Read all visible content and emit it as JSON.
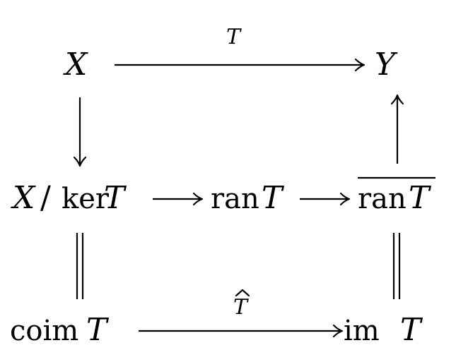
{
  "nodes": {
    "X": "X",
    "Y": "Y",
    "quotient": {
      "space": "X",
      "slash": "/",
      "ker": "ker",
      "op": "T"
    },
    "ran": {
      "fn": "ran",
      "op": "T"
    },
    "closure_ran": {
      "fn": "ran",
      "op": "T"
    },
    "coim": {
      "fn": "coim",
      "op": "T"
    },
    "im": {
      "fn": "im",
      "op": "T"
    }
  },
  "labels": {
    "top_arrow": "T",
    "bottom_arrow": "T",
    "bottom_arrow_hat": "^"
  }
}
